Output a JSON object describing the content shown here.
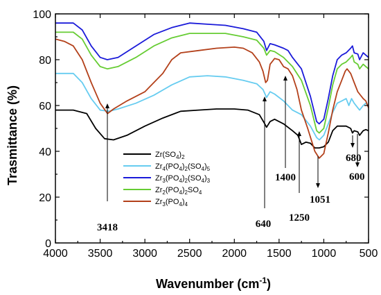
{
  "chart_data": {
    "type": "line",
    "xlabel": "Wavenumber (cm",
    "xlabel_sup": "-1",
    "xlabel_close": ")",
    "ylabel": "Trasmittance (%)",
    "xlim": [
      4000,
      500
    ],
    "ylim": [
      0,
      100
    ],
    "x_ticks": [
      "4000",
      "3500",
      "3000",
      "2500",
      "2000",
      "1500",
      "1000",
      "500"
    ],
    "y_ticks": [
      "0",
      "20",
      "40",
      "60",
      "80",
      "100"
    ],
    "grid": false,
    "legend_position": "center-left",
    "series": [
      {
        "name_parts": [
          [
            "Zr(SO",
            ""
          ],
          [
            "4",
            "sub"
          ],
          [
            ")",
            ""
          ],
          [
            "2",
            "sub"
          ]
        ],
        "color": "#000000",
        "points": [
          [
            4000,
            58
          ],
          [
            3800,
            58
          ],
          [
            3650,
            56.5
          ],
          [
            3550,
            50
          ],
          [
            3450,
            45.5
          ],
          [
            3350,
            45
          ],
          [
            3200,
            47
          ],
          [
            3000,
            51
          ],
          [
            2800,
            54.5
          ],
          [
            2600,
            57.5
          ],
          [
            2400,
            58
          ],
          [
            2200,
            58.5
          ],
          [
            2000,
            58.5
          ],
          [
            1850,
            58
          ],
          [
            1720,
            56
          ],
          [
            1660,
            52
          ],
          [
            1640,
            50.5
          ],
          [
            1600,
            53
          ],
          [
            1550,
            54
          ],
          [
            1450,
            52
          ],
          [
            1350,
            49
          ],
          [
            1290,
            47
          ],
          [
            1250,
            43
          ],
          [
            1200,
            44
          ],
          [
            1150,
            43.5
          ],
          [
            1100,
            41.5
          ],
          [
            1051,
            41.5
          ],
          [
            1000,
            42
          ],
          [
            950,
            44
          ],
          [
            900,
            49
          ],
          [
            850,
            51
          ],
          [
            750,
            51
          ],
          [
            700,
            50
          ],
          [
            680,
            48
          ],
          [
            660,
            49
          ],
          [
            620,
            48.5
          ],
          [
            600,
            47
          ],
          [
            560,
            49
          ],
          [
            530,
            49.5
          ],
          [
            500,
            49
          ]
        ]
      },
      {
        "name_parts": [
          [
            "Zr",
            ""
          ],
          [
            "4",
            "sub"
          ],
          [
            "(PO",
            ""
          ],
          [
            "4",
            "sub"
          ],
          [
            ")",
            ""
          ],
          [
            "2",
            "sub"
          ],
          [
            "(SO",
            ""
          ],
          [
            "4",
            "sub"
          ],
          [
            ")",
            ""
          ],
          [
            "5",
            "sub"
          ]
        ],
        "color": "#66ccf0",
        "points": [
          [
            4000,
            74
          ],
          [
            3800,
            74
          ],
          [
            3700,
            70
          ],
          [
            3600,
            63
          ],
          [
            3500,
            58
          ],
          [
            3400,
            57.5
          ],
          [
            3300,
            58.5
          ],
          [
            3100,
            61
          ],
          [
            2900,
            64.5
          ],
          [
            2700,
            69
          ],
          [
            2500,
            72.5
          ],
          [
            2300,
            73
          ],
          [
            2100,
            72.5
          ],
          [
            1900,
            71
          ],
          [
            1750,
            69.5
          ],
          [
            1680,
            67
          ],
          [
            1640,
            63.5
          ],
          [
            1600,
            66
          ],
          [
            1550,
            65
          ],
          [
            1450,
            62
          ],
          [
            1350,
            58
          ],
          [
            1250,
            56
          ],
          [
            1150,
            51
          ],
          [
            1080,
            46
          ],
          [
            1050,
            45
          ],
          [
            1000,
            47
          ],
          [
            950,
            52
          ],
          [
            900,
            57
          ],
          [
            850,
            61
          ],
          [
            800,
            62
          ],
          [
            750,
            63
          ],
          [
            720,
            60
          ],
          [
            690,
            63
          ],
          [
            660,
            61
          ],
          [
            620,
            59
          ],
          [
            600,
            58
          ],
          [
            560,
            60
          ],
          [
            530,
            61
          ],
          [
            500,
            60
          ]
        ]
      },
      {
        "name_parts": [
          [
            "Zr",
            ""
          ],
          [
            "3",
            "sub"
          ],
          [
            "(PO",
            ""
          ],
          [
            "4",
            "sub"
          ],
          [
            ")",
            ""
          ],
          [
            "2",
            "sub"
          ],
          [
            "(SO",
            ""
          ],
          [
            "4",
            "sub"
          ],
          [
            ")",
            ""
          ],
          [
            "3",
            "sub"
          ]
        ],
        "color": "#1a1ad9",
        "points": [
          [
            4000,
            96
          ],
          [
            3800,
            96
          ],
          [
            3700,
            93
          ],
          [
            3600,
            86
          ],
          [
            3500,
            81
          ],
          [
            3420,
            80
          ],
          [
            3300,
            81
          ],
          [
            3100,
            86
          ],
          [
            2900,
            91
          ],
          [
            2700,
            94
          ],
          [
            2500,
            96
          ],
          [
            2300,
            95.5
          ],
          [
            2100,
            95
          ],
          [
            1900,
            93.5
          ],
          [
            1750,
            92
          ],
          [
            1670,
            88
          ],
          [
            1640,
            84
          ],
          [
            1600,
            87
          ],
          [
            1550,
            86.5
          ],
          [
            1450,
            85
          ],
          [
            1400,
            84
          ],
          [
            1350,
            81
          ],
          [
            1250,
            76
          ],
          [
            1150,
            64
          ],
          [
            1080,
            53
          ],
          [
            1051,
            52
          ],
          [
            1000,
            54
          ],
          [
            950,
            63
          ],
          [
            900,
            73
          ],
          [
            850,
            80
          ],
          [
            800,
            82
          ],
          [
            750,
            83
          ],
          [
            700,
            85
          ],
          [
            680,
            86
          ],
          [
            660,
            83
          ],
          [
            620,
            82.5
          ],
          [
            600,
            80
          ],
          [
            560,
            83
          ],
          [
            530,
            82
          ],
          [
            500,
            81
          ]
        ]
      },
      {
        "name_parts": [
          [
            "Zr",
            ""
          ],
          [
            "2",
            "sub"
          ],
          [
            "(PO",
            ""
          ],
          [
            "4",
            "sub"
          ],
          [
            ")",
            ""
          ],
          [
            "2",
            "sub"
          ],
          [
            "SO",
            ""
          ],
          [
            "4",
            "sub"
          ]
        ],
        "color": "#66cc33",
        "points": [
          [
            4000,
            92
          ],
          [
            3800,
            92
          ],
          [
            3700,
            89
          ],
          [
            3600,
            82
          ],
          [
            3500,
            77
          ],
          [
            3420,
            76
          ],
          [
            3300,
            77
          ],
          [
            3100,
            81
          ],
          [
            2900,
            86
          ],
          [
            2700,
            89.5
          ],
          [
            2500,
            91.5
          ],
          [
            2300,
            91.5
          ],
          [
            2100,
            91.5
          ],
          [
            1900,
            90
          ],
          [
            1750,
            88.5
          ],
          [
            1670,
            85
          ],
          [
            1640,
            82
          ],
          [
            1600,
            84
          ],
          [
            1550,
            83.5
          ],
          [
            1450,
            81
          ],
          [
            1350,
            77
          ],
          [
            1250,
            71
          ],
          [
            1150,
            60
          ],
          [
            1080,
            49
          ],
          [
            1051,
            48
          ],
          [
            1000,
            50
          ],
          [
            950,
            59
          ],
          [
            900,
            69
          ],
          [
            850,
            76
          ],
          [
            800,
            78
          ],
          [
            750,
            79
          ],
          [
            700,
            81
          ],
          [
            680,
            82
          ],
          [
            660,
            79
          ],
          [
            620,
            78
          ],
          [
            600,
            76
          ],
          [
            560,
            78
          ],
          [
            530,
            77
          ],
          [
            500,
            76
          ]
        ]
      },
      {
        "name_parts": [
          [
            "Zr",
            ""
          ],
          [
            "3",
            "sub"
          ],
          [
            "(PO",
            ""
          ],
          [
            "4",
            "sub"
          ],
          [
            ")",
            ""
          ],
          [
            "4",
            "sub"
          ]
        ],
        "color": "#b3401a",
        "points": [
          [
            4000,
            89
          ],
          [
            3900,
            88
          ],
          [
            3800,
            86
          ],
          [
            3700,
            80
          ],
          [
            3600,
            70
          ],
          [
            3500,
            61
          ],
          [
            3418,
            56.5
          ],
          [
            3350,
            58.5
          ],
          [
            3200,
            62
          ],
          [
            3000,
            66
          ],
          [
            2800,
            74
          ],
          [
            2700,
            80
          ],
          [
            2600,
            83
          ],
          [
            2400,
            84
          ],
          [
            2200,
            85
          ],
          [
            2000,
            85.5
          ],
          [
            1900,
            85
          ],
          [
            1800,
            83
          ],
          [
            1720,
            79
          ],
          [
            1680,
            75
          ],
          [
            1650,
            70
          ],
          [
            1630,
            71
          ],
          [
            1600,
            78
          ],
          [
            1550,
            80.5
          ],
          [
            1500,
            80
          ],
          [
            1450,
            77
          ],
          [
            1400,
            76
          ],
          [
            1350,
            73
          ],
          [
            1300,
            67
          ],
          [
            1250,
            58
          ],
          [
            1180,
            50
          ],
          [
            1100,
            40
          ],
          [
            1051,
            37
          ],
          [
            1000,
            39
          ],
          [
            950,
            48
          ],
          [
            900,
            58
          ],
          [
            850,
            66
          ],
          [
            800,
            71
          ],
          [
            760,
            75
          ],
          [
            740,
            76
          ],
          [
            700,
            74
          ],
          [
            660,
            70
          ],
          [
            620,
            66
          ],
          [
            600,
            65
          ],
          [
            560,
            63
          ],
          [
            530,
            62
          ],
          [
            500,
            59
          ]
        ]
      }
    ],
    "annotations": [
      {
        "label": "3418",
        "x": 3418
      },
      {
        "label": "640",
        "x": 1640
      },
      {
        "label": "1400",
        "x": 1400
      },
      {
        "label": "1250",
        "x": 1250
      },
      {
        "label": "1051",
        "x": 1051
      },
      {
        "label": "680",
        "x": 680
      },
      {
        "label": "600",
        "x": 600
      }
    ]
  }
}
